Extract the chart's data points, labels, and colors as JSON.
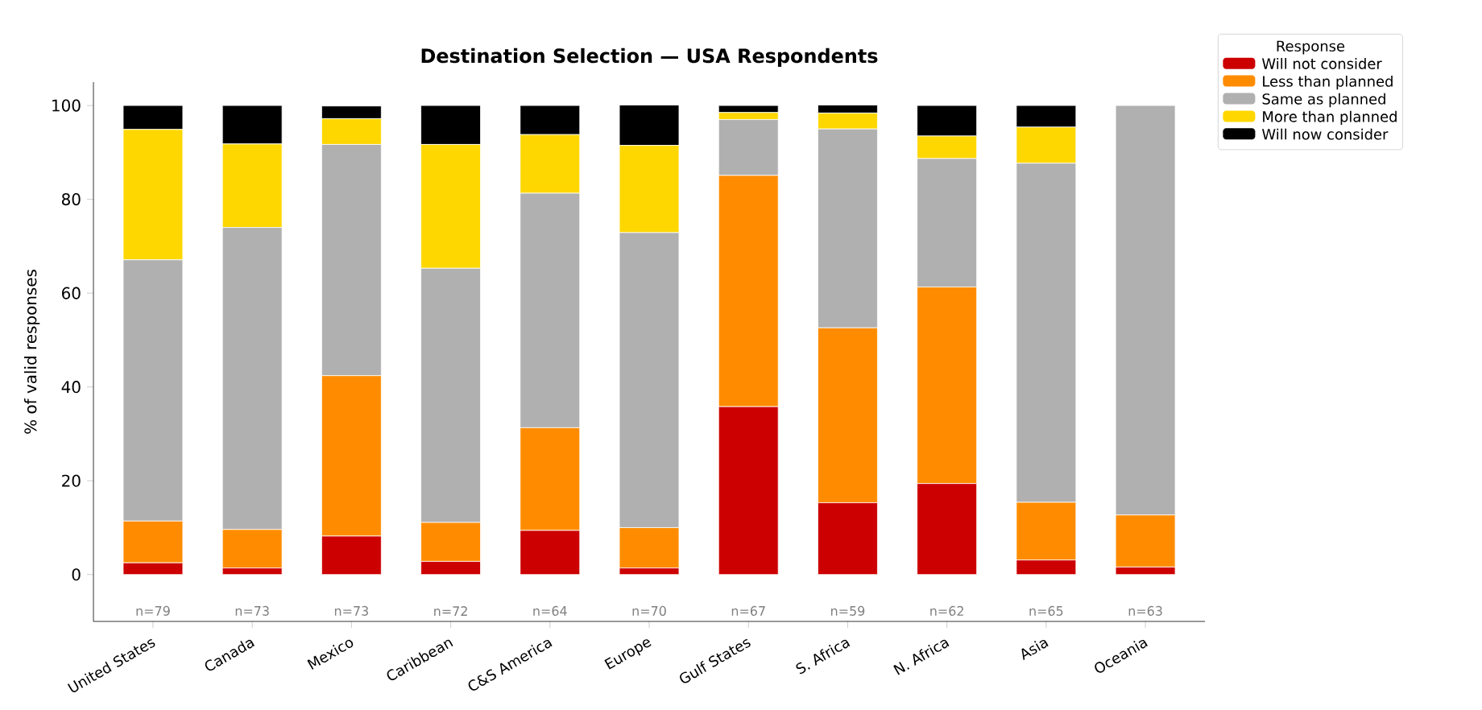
{
  "chart_data": {
    "type": "bar",
    "stacked": true,
    "title": "Destination Selection — USA Respondents",
    "ylabel": "% of valid responses",
    "legend_title": "Response",
    "legend": "top right",
    "categories": [
      "United States",
      "Canada",
      "Mexico",
      "Caribbean",
      "C&S America",
      "Europe",
      "Gulf States",
      "S. Africa",
      "N. Africa",
      "Asia",
      "Oceania"
    ],
    "series": [
      {
        "name": "Will not consider",
        "color": "#cc0000",
        "values": [
          2.5,
          1.4,
          8.2,
          2.8,
          9.4,
          1.4,
          35.8,
          15.3,
          19.4,
          3.1,
          1.6
        ]
      },
      {
        "name": "Less than planned",
        "color": "#ff8c00",
        "values": [
          8.9,
          8.2,
          34.2,
          8.3,
          21.9,
          8.6,
          49.3,
          37.3,
          41.9,
          12.3,
          11.1
        ]
      },
      {
        "name": "Same as planned",
        "color": "#b0b0b0",
        "values": [
          55.7,
          64.4,
          49.3,
          54.2,
          50.0,
          62.9,
          11.9,
          42.4,
          27.4,
          72.3,
          87.3
        ]
      },
      {
        "name": "More than planned",
        "color": "#ffd700",
        "values": [
          27.8,
          17.8,
          5.5,
          26.4,
          12.5,
          18.6,
          1.5,
          3.4,
          4.8,
          7.7,
          0
        ]
      },
      {
        "name": "Will now consider",
        "color": "#000000",
        "values": [
          5.1,
          8.2,
          2.7,
          8.3,
          6.2,
          8.6,
          1.5,
          1.7,
          6.5,
          4.6,
          0
        ]
      }
    ],
    "ylim": [
      -10,
      105
    ],
    "yticks": [
      0,
      20,
      40,
      60,
      80,
      100
    ],
    "annotations": [
      "n=79",
      "n=73",
      "n=73",
      "n=72",
      "n=64",
      "n=70",
      "n=67",
      "n=59",
      "n=62",
      "n=65",
      "n=63"
    ]
  }
}
